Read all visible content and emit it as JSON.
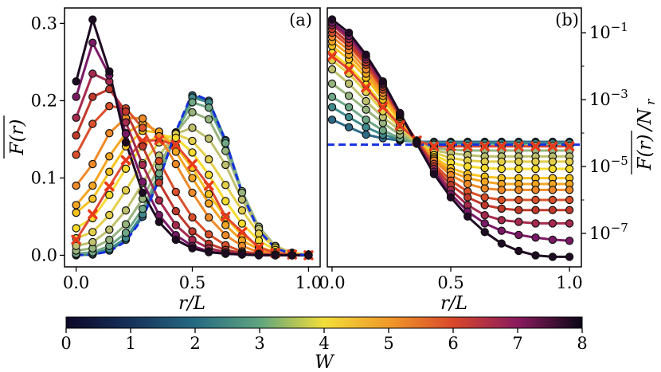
{
  "chart_data": [
    {
      "type": "line",
      "panel_label": "(a)",
      "xlabel": "r/L",
      "ylabel": "F(r) (overlined)",
      "xlim": [
        -0.05,
        1.05
      ],
      "ylim": [
        -0.015,
        0.32
      ],
      "yscale": "linear",
      "xticks": [
        "0.0",
        "0.5",
        "1.0"
      ],
      "yticks": [
        "0.0",
        "0.1",
        "0.2",
        "0.3"
      ],
      "ytick_values": [
        0.0,
        0.1,
        0.2,
        0.3
      ],
      "x": [
        0.0,
        0.071,
        0.143,
        0.214,
        0.286,
        0.357,
        0.429,
        0.5,
        0.571,
        0.643,
        0.714,
        0.786,
        0.857,
        0.929,
        1.0
      ],
      "series": [
        {
          "W": 0.5,
          "color": "#2f6b88",
          "marker": "circle",
          "values": [
            0.0,
            0.001,
            0.006,
            0.02,
            0.05,
            0.099,
            0.159,
            0.207,
            0.2,
            0.149,
            0.082,
            0.034,
            0.01,
            0.002,
            0.0
          ]
        },
        {
          "W": 1.0,
          "color": "#3f8a8c",
          "marker": "circle",
          "values": [
            0.001,
            0.002,
            0.008,
            0.022,
            0.053,
            0.1,
            0.158,
            0.204,
            0.198,
            0.148,
            0.082,
            0.034,
            0.01,
            0.002,
            0.0
          ]
        },
        {
          "W": 1.5,
          "color": "#6fa886",
          "marker": "circle",
          "values": [
            0.002,
            0.004,
            0.012,
            0.029,
            0.06,
            0.106,
            0.159,
            0.198,
            0.191,
            0.145,
            0.083,
            0.036,
            0.011,
            0.003,
            0.0
          ]
        },
        {
          "W": 2.0,
          "color": "#97b47e",
          "marker": "circle",
          "values": [
            0.006,
            0.009,
            0.02,
            0.04,
            0.073,
            0.115,
            0.158,
            0.185,
            0.176,
            0.135,
            0.081,
            0.037,
            0.012,
            0.003,
            0.001
          ]
        },
        {
          "W": 2.5,
          "color": "#bfc06d",
          "marker": "circle",
          "values": [
            0.012,
            0.017,
            0.033,
            0.058,
            0.093,
            0.129,
            0.157,
            0.165,
            0.151,
            0.117,
            0.072,
            0.034,
            0.012,
            0.003,
            0.001
          ]
        },
        {
          "W": 3.0,
          "color": "#e4cf4a",
          "marker": "circle",
          "values": [
            0.022,
            0.03,
            0.052,
            0.084,
            0.119,
            0.146,
            0.157,
            0.148,
            0.124,
            0.091,
            0.058,
            0.028,
            0.01,
            0.003,
            0.001
          ]
        },
        {
          "W": 3.5,
          "color": "#f7dc2e",
          "marker": "circle",
          "values": [
            0.035,
            0.048,
            0.078,
            0.112,
            0.142,
            0.156,
            0.152,
            0.133,
            0.104,
            0.07,
            0.041,
            0.019,
            0.007,
            0.002,
            0.001
          ]
        },
        {
          "W": 4.0,
          "color": "#f7c21e",
          "marker": "circle",
          "values": [
            0.055,
            0.073,
            0.108,
            0.141,
            0.161,
            0.159,
            0.141,
            0.113,
            0.079,
            0.049,
            0.026,
            0.011,
            0.004,
            0.001,
            0.0
          ]
        },
        {
          "W": 4.3,
          "color": "#f5a522",
          "marker": "circle",
          "values": [
            0.065,
            0.09,
            0.128,
            0.158,
            0.17,
            0.16,
            0.134,
            0.1,
            0.067,
            0.039,
            0.019,
            0.008,
            0.003,
            0.001,
            0.0
          ]
        },
        {
          "W": 4.6,
          "color": "#f08a28",
          "marker": "circle",
          "values": [
            0.09,
            0.118,
            0.158,
            0.178,
            0.177,
            0.154,
            0.118,
            0.081,
            0.049,
            0.026,
            0.012,
            0.004,
            0.001,
            0.0,
            0.0
          ]
        },
        {
          "W": 5.0,
          "color": "#e24a33",
          "marker": "cross",
          "values": [
            0.02,
            0.053,
            0.089,
            0.123,
            0.148,
            0.149,
            0.143,
            0.118,
            0.09,
            0.05,
            0.03,
            0.01,
            0.003,
            0.001,
            0.0
          ]
        },
        {
          "W": 5.3,
          "color": "#d9502a",
          "marker": "circle",
          "values": [
            0.13,
            0.17,
            0.193,
            0.19,
            0.165,
            0.122,
            0.082,
            0.049,
            0.027,
            0.013,
            0.005,
            0.002,
            0.001,
            0.0,
            0.0
          ]
        },
        {
          "W": 5.7,
          "color": "#c0392b",
          "marker": "circle",
          "values": [
            0.155,
            0.205,
            0.215,
            0.186,
            0.141,
            0.094,
            0.057,
            0.031,
            0.015,
            0.007,
            0.003,
            0.001,
            0.0,
            0.0,
            0.0
          ]
        },
        {
          "W": 6.2,
          "color": "#a52a4e",
          "marker": "circle",
          "values": [
            0.178,
            0.235,
            0.225,
            0.172,
            0.117,
            0.071,
            0.039,
            0.02,
            0.009,
            0.004,
            0.002,
            0.001,
            0.0,
            0.0,
            0.0
          ]
        },
        {
          "W": 6.8,
          "color": "#7a1a66",
          "marker": "circle",
          "values": [
            0.205,
            0.275,
            0.233,
            0.157,
            0.095,
            0.052,
            0.026,
            0.012,
            0.005,
            0.002,
            0.001,
            0.0,
            0.0,
            0.0,
            0.0
          ]
        },
        {
          "W": 8.0,
          "color": "#1e0a22",
          "marker": "circle",
          "values": [
            0.225,
            0.305,
            0.238,
            0.146,
            0.081,
            0.043,
            0.02,
            0.009,
            0.004,
            0.002,
            0.001,
            0.0,
            0.0,
            0.0,
            0.0
          ]
        }
      ],
      "reference": {
        "style": "dashed",
        "color": "#1530e0",
        "x": [
          0.0,
          0.071,
          0.143,
          0.214,
          0.286,
          0.357,
          0.429,
          0.5,
          0.571,
          0.643,
          0.714,
          0.786,
          0.857,
          0.929,
          1.0
        ],
        "values": [
          0.0,
          0.001,
          0.005,
          0.018,
          0.048,
          0.098,
          0.16,
          0.21,
          0.2,
          0.148,
          0.08,
          0.032,
          0.009,
          0.002,
          0.0
        ]
      }
    },
    {
      "type": "line",
      "panel_label": "(b)",
      "xlabel": "r/L",
      "ylabel": "F(r)/N_r",
      "xlim": [
        -0.02,
        1.05
      ],
      "ylim": [
        1e-08,
        0.55
      ],
      "yscale": "log",
      "xticks": [
        "0.0",
        "0.5",
        "1.0"
      ],
      "yticks": [
        "10^-1",
        "10^-3",
        "10^-5",
        "10^-7"
      ],
      "ytick_values": [
        0.1,
        0.001,
        1e-05,
        1e-07
      ],
      "x": [
        0.0,
        0.071,
        0.143,
        0.214,
        0.286,
        0.357,
        0.429,
        0.5,
        0.571,
        0.643,
        0.714,
        0.786,
        0.857,
        0.929,
        1.0
      ],
      "series": [
        {
          "W": 0.5,
          "color": "#2f6b88",
          "marker": "circle",
          "values": [
            0.00025,
            0.00015,
            9e-05,
            7e-05,
            6e-05,
            5.5e-05,
            5.5e-05,
            5.5e-05,
            5.5e-05,
            5.5e-05,
            5.5e-05,
            5.5e-05,
            5.5e-05,
            5.5e-05,
            5.5e-05
          ]
        },
        {
          "W": 1.0,
          "color": "#3f8a8c",
          "marker": "circle",
          "values": [
            0.0006,
            0.0003,
            0.00015,
            9e-05,
            6.5e-05,
            5.5e-05,
            5e-05,
            5e-05,
            5e-05,
            5e-05,
            5e-05,
            5e-05,
            5e-05,
            5e-05,
            5e-05
          ]
        },
        {
          "W": 1.5,
          "color": "#6fa886",
          "marker": "circle",
          "values": [
            0.0012,
            0.0006,
            0.00025,
            0.00012,
            7e-05,
            5e-05,
            4.5e-05,
            4.2e-05,
            4.2e-05,
            4.2e-05,
            4.2e-05,
            4.2e-05,
            4.2e-05,
            4.2e-05,
            4.2e-05
          ]
        },
        {
          "W": 2.0,
          "color": "#97b47e",
          "marker": "circle",
          "values": [
            0.003,
            0.0013,
            0.0005,
            0.0002,
            9e-05,
            5e-05,
            3.5e-05,
            3.2e-05,
            3e-05,
            3e-05,
            3e-05,
            3e-05,
            3e-05,
            3e-05,
            3e-05
          ]
        },
        {
          "W": 2.5,
          "color": "#bfc06d",
          "marker": "circle",
          "values": [
            0.008,
            0.003,
            0.0009,
            0.0003,
            0.00012,
            5e-05,
            3e-05,
            2.5e-05,
            2.2e-05,
            2e-05,
            2e-05,
            2e-05,
            2e-05,
            2e-05,
            2e-05
          ]
        },
        {
          "W": 3.0,
          "color": "#e4cf4a",
          "marker": "circle",
          "values": [
            0.015,
            0.006,
            0.0017,
            0.00045,
            0.00015,
            5.5e-05,
            2.6e-05,
            1.8e-05,
            1.5e-05,
            1.4e-05,
            1.4e-05,
            1.4e-05,
            1.4e-05,
            1.4e-05,
            1.4e-05
          ]
        },
        {
          "W": 3.5,
          "color": "#f7dc2e",
          "marker": "circle",
          "values": [
            0.025,
            0.01,
            0.0028,
            0.0007,
            0.00018,
            5.5e-05,
            2.2e-05,
            1.3e-05,
            1e-05,
            9e-06,
            8.5e-06,
            8.5e-06,
            8.5e-06,
            8.5e-06,
            8.5e-06
          ]
        },
        {
          "W": 4.0,
          "color": "#f7c21e",
          "marker": "circle",
          "values": [
            0.04,
            0.016,
            0.0045,
            0.001,
            0.00023,
            6e-05,
            1.9e-05,
            9e-06,
            6e-06,
            5e-06,
            4.5e-06,
            4.5e-06,
            4.5e-06,
            4.5e-06,
            4.5e-06
          ]
        },
        {
          "W": 4.3,
          "color": "#f5a522",
          "marker": "circle",
          "values": [
            0.055,
            0.022,
            0.006,
            0.0013,
            0.00027,
            6e-05,
            1.7e-05,
            7e-06,
            4.5e-06,
            3.5e-06,
            3e-06,
            3e-06,
            3e-06,
            3e-06,
            3e-06
          ]
        },
        {
          "W": 4.6,
          "color": "#f08a28",
          "marker": "circle",
          "values": [
            0.075,
            0.03,
            0.008,
            0.0016,
            0.0003,
            6e-05,
            1.5e-05,
            5.5e-06,
            3e-06,
            2.2e-06,
            2e-06,
            2e-06,
            2e-06,
            2e-06,
            2e-06
          ]
        },
        {
          "W": 5.0,
          "color": "#e24a33",
          "marker": "cross",
          "values": [
            0.02,
            0.008,
            0.0023,
            0.0006,
            0.00017,
            6e-05,
            4e-05,
            4e-05,
            4e-05,
            4e-05,
            4e-05,
            4e-05,
            4e-05,
            4e-05,
            4e-05
          ]
        },
        {
          "W": 5.3,
          "color": "#d9502a",
          "marker": "circle",
          "values": [
            0.1,
            0.04,
            0.011,
            0.002,
            0.00033,
            5.8e-05,
            1.2e-05,
            3.8e-06,
            1.8e-06,
            1.2e-06,
            1e-06,
            1e-06,
            1e-06,
            1e-06,
            1e-06
          ]
        },
        {
          "W": 5.7,
          "color": "#c0392b",
          "marker": "circle",
          "values": [
            0.13,
            0.05,
            0.013,
            0.0024,
            0.00035,
            5.5e-05,
            1e-05,
            2.8e-06,
            1.2e-06,
            7e-07,
            5.5e-07,
            5e-07,
            5e-07,
            5e-07,
            5e-07
          ]
        },
        {
          "W": 6.2,
          "color": "#a52a4e",
          "marker": "circle",
          "values": [
            0.17,
            0.065,
            0.016,
            0.0028,
            0.00037,
            5.2e-05,
            8.5e-06,
            2e-06,
            7e-07,
            3.5e-07,
            2.5e-07,
            2.2e-07,
            2e-07,
            2e-07,
            2e-07
          ]
        },
        {
          "W": 6.8,
          "color": "#7a1a66",
          "marker": "circle",
          "values": [
            0.2,
            0.08,
            0.019,
            0.0031,
            0.00038,
            5e-05,
            7e-06,
            1.5e-06,
            4.5e-07,
            2e-07,
            1.2e-07,
            9e-08,
            7.5e-08,
            6.5e-08,
            6e-08
          ]
        },
        {
          "W": 8.0,
          "color": "#1e0a22",
          "marker": "circle",
          "values": [
            0.25,
            0.1,
            0.022,
            0.0035,
            0.0004,
            4.8e-05,
            6e-06,
            1.2e-06,
            3.2e-07,
            1.1e-07,
            5e-08,
            3e-08,
            2.2e-08,
            2e-08,
            2e-08
          ]
        }
      ],
      "reference": {
        "style": "dashed",
        "color": "#1530e0",
        "x": [
          -0.02,
          1.05
        ],
        "values": [
          4.5e-05,
          4.5e-05
        ]
      }
    }
  ],
  "colorbar": {
    "label": "W",
    "min": 0,
    "max": 8,
    "ticks": [
      "0",
      "1",
      "2",
      "3",
      "4",
      "5",
      "6",
      "7",
      "8"
    ],
    "colors": [
      "#0d0828",
      "#16325a",
      "#266a82",
      "#5ea47f",
      "#f2dd3a",
      "#f09a2a",
      "#d9482a",
      "#8a1a5e",
      "#0b0716"
    ]
  }
}
